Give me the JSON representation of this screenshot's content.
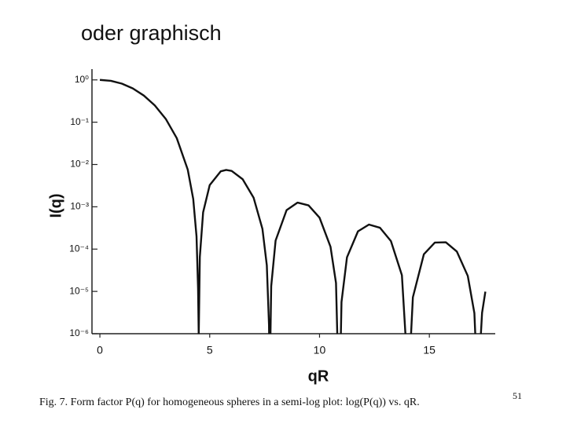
{
  "slide": {
    "title": "oder graphisch",
    "page_number": "51"
  },
  "chart_data": {
    "type": "line",
    "x_label": "qR",
    "y_label": "I(q)",
    "caption": "Fig. 7. Form factor P(q) for homogeneous spheres in a semi-log plot: log(P(q)) vs. qR.",
    "x": [
      0,
      0.5,
      1,
      1.5,
      2,
      2.5,
      3,
      3.5,
      4,
      4.25,
      4.4,
      4.47,
      4.5,
      4.55,
      4.7,
      5,
      5.5,
      5.75,
      6,
      6.5,
      7,
      7.4,
      7.6,
      7.7,
      7.73,
      7.8,
      8,
      8.5,
      9,
      9.5,
      10,
      10.5,
      10.75,
      10.9,
      11,
      11.25,
      11.75,
      12.25,
      12.75,
      13.25,
      13.75,
      14.05,
      14.25,
      14.75,
      15.25,
      15.75,
      16.25,
      16.75,
      17.05,
      17.2,
      17.4,
      17.55
    ],
    "values": [
      1,
      0.951,
      0.816,
      0.628,
      0.4265,
      0.2495,
      0.1195,
      0.04194,
      0.007584,
      0.00153,
      0.000199,
      1.18e-05,
      9e-07,
      6.49e-05,
      0.00074,
      0.003255,
      0.00689,
      0.007424,
      0.007039,
      0.004489,
      0.001633,
      0.000302,
      4.14e-05,
      1.6e-06,
      5.9e-08,
      1.33e-05,
      0.000159,
      0.000835,
      0.001256,
      0.001081,
      0.000554,
      0.0001136,
      1.58e-05,
      1.2e-08,
      5.6e-06,
      6.41e-05,
      0.000263,
      0.00038,
      0.00032,
      0.000155,
      2.42e-05,
      6.1e-08,
      7.26e-06,
      7.56e-05,
      0.0001426,
      0.0001452,
      8.78e-05,
      2.32e-05,
      3.06e-06,
      4.4e-08,
      3.11e-06,
      9.89e-06
    ],
    "color": "#111111",
    "log_y": true,
    "xlim": [
      -0.36,
      18
    ],
    "ylim": [
      1e-06,
      1.8
    ],
    "xticks": [
      0,
      5,
      10,
      15
    ],
    "yticks": [
      {
        "value": 1,
        "label": "10⁰"
      },
      {
        "value": 0.1,
        "label": "10⁻¹"
      },
      {
        "value": 0.01,
        "label": "10⁻²"
      },
      {
        "value": 0.001,
        "label": "10⁻³"
      },
      {
        "value": 0.0001,
        "label": "10⁻⁴"
      },
      {
        "value": 1e-05,
        "label": "10⁻⁵"
      },
      {
        "value": 1e-06,
        "label": "10⁻⁶"
      }
    ]
  }
}
